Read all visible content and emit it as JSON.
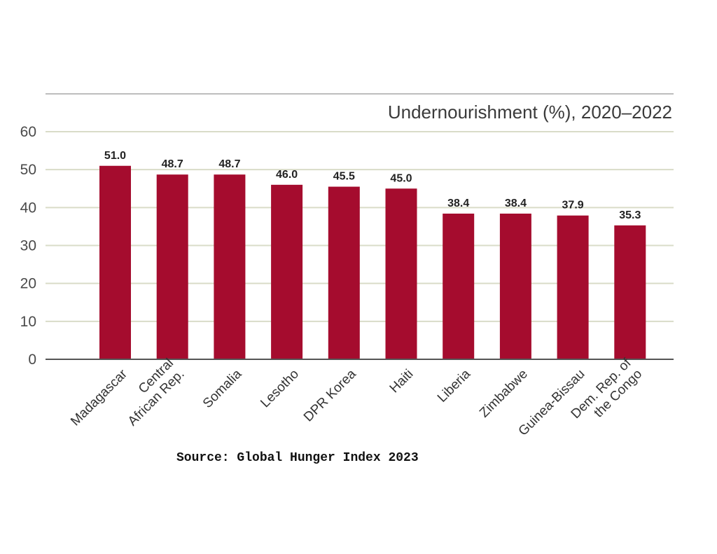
{
  "chart_data": {
    "type": "bar",
    "title": "Undernourishment (%), 2020–2022",
    "xlabel": "",
    "ylabel": "",
    "ylim": [
      0,
      60
    ],
    "yticks": [
      "0",
      "10",
      "20",
      "30",
      "40",
      "50",
      "60"
    ],
    "grid": true,
    "categories": [
      [
        "Madagascar"
      ],
      [
        "Central",
        "African Rep."
      ],
      [
        "Somalia"
      ],
      [
        "Lesotho"
      ],
      [
        "DPR Korea"
      ],
      [
        "Haiti"
      ],
      [
        "Liberia"
      ],
      [
        "Zimbabwe"
      ],
      [
        "Guinea-Bissau"
      ],
      [
        "Dem. Rep. of",
        "the Congo"
      ]
    ],
    "values": [
      51.0,
      48.7,
      48.7,
      46.0,
      45.5,
      45.0,
      38.4,
      38.4,
      37.9,
      35.3
    ],
    "value_labels": [
      "51.0",
      "48.7",
      "48.7",
      "46.0",
      "45.5",
      "45.0",
      "38.4",
      "38.4",
      "37.9",
      "35.3"
    ],
    "source": "Source: Global Hunger Index 2023"
  },
  "colors": {
    "bar": "#a50c2e",
    "grid": "#d9dcc8",
    "axis": "#555555"
  }
}
